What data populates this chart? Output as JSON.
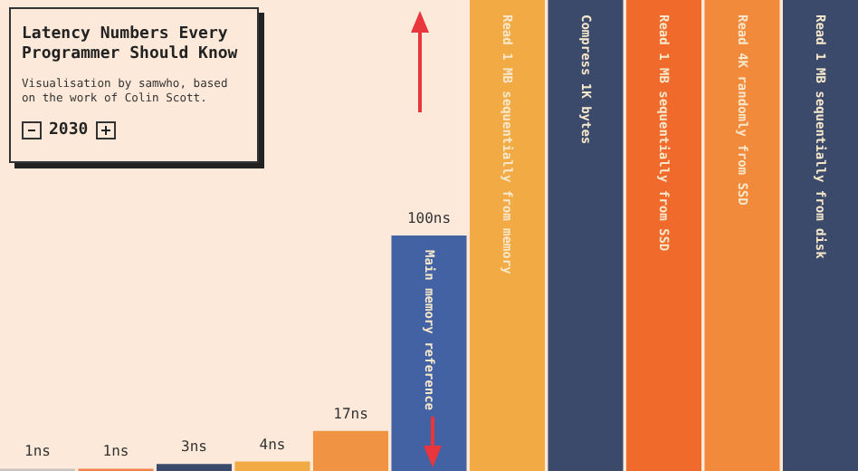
{
  "chart_data": {
    "type": "bar",
    "title": "Latency Numbers Every Programmer Should Know",
    "subtitle": "Visualisation by samwho, based on the work of Colin Scott.",
    "annotations": [
      "2030"
    ],
    "categories": [
      null,
      null,
      null,
      null,
      null,
      "Main memory reference",
      "Read 1 MB sequentially from memory",
      "Compress 1K bytes",
      "Read 1 MB sequentially from SSD",
      "Read 4K randomly from SSD",
      "Read 1 MB sequentially from disk"
    ],
    "values": [
      1,
      1,
      3,
      4,
      17,
      100,
      200,
      200,
      200,
      200,
      200
    ],
    "value_labels": [
      "1ns",
      "1ns",
      "3ns",
      "4ns",
      "17ns",
      "100ns",
      null,
      null,
      null,
      null,
      null
    ],
    "colors": [
      "#c9c4bf",
      "#f0844a",
      "#3b4a6b",
      "#f2aa45",
      "#f09342",
      "#4262a3",
      "#f2aa45",
      "#3b4a6b",
      "#f06a2c",
      "#f28a3c",
      "#3b4a6b"
    ]
  }
}
